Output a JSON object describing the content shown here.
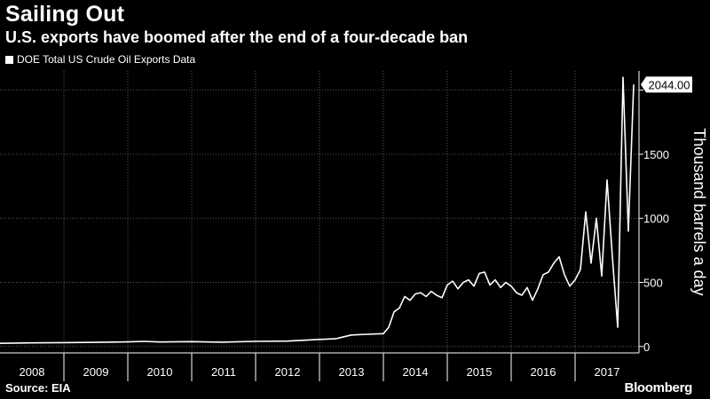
{
  "header": {
    "title": "Sailing Out",
    "subtitle": "U.S. exports have boomed after the end of a four-decade ban"
  },
  "footer": {
    "source": "Source: EIA",
    "brand": "Bloomberg"
  },
  "colors": {
    "background": "#000000",
    "line": "#ffffff",
    "grid": "#5a5a5a",
    "axis": "#ffffff"
  },
  "chart_data": {
    "type": "line",
    "title": "Sailing Out",
    "subtitle": "U.S. exports have boomed after the end of a four-decade ban",
    "ylabel": "Thousand barrels a day",
    "xlabel": "",
    "ylim": [
      -50,
      2150
    ],
    "xlim": [
      "2008-01",
      "2017-12"
    ],
    "y_ticks": [
      0,
      500,
      1000,
      1500,
      2000
    ],
    "y_tick_labels": [
      "0",
      "500",
      "1000",
      "1500",
      ""
    ],
    "x_tick_labels": [
      "2008",
      "2009",
      "2010",
      "2011",
      "2012",
      "2013",
      "2014",
      "2015",
      "2016",
      "2017"
    ],
    "grid": "vertical dotted at year boundaries, horizontal dotted at y ticks",
    "legend": "top-left",
    "last_value_label": "2044.00",
    "series": [
      {
        "name": "DOE Total US Crude Oil Exports Data",
        "points": [
          [
            "2008-01",
            25
          ],
          [
            "2008-07",
            28
          ],
          [
            "2009-01",
            30
          ],
          [
            "2009-07",
            32
          ],
          [
            "2010-01",
            36
          ],
          [
            "2010-04",
            40
          ],
          [
            "2010-07",
            35
          ],
          [
            "2011-01",
            38
          ],
          [
            "2011-07",
            34
          ],
          [
            "2012-01",
            40
          ],
          [
            "2012-07",
            42
          ],
          [
            "2013-01",
            55
          ],
          [
            "2013-04",
            60
          ],
          [
            "2013-07",
            90
          ],
          [
            "2013-10",
            95
          ],
          [
            "2014-01",
            100
          ],
          [
            "2014-02",
            150
          ],
          [
            "2014-03",
            270
          ],
          [
            "2014-04",
            300
          ],
          [
            "2014-05",
            390
          ],
          [
            "2014-06",
            360
          ],
          [
            "2014-07",
            410
          ],
          [
            "2014-08",
            420
          ],
          [
            "2014-09",
            390
          ],
          [
            "2014-10",
            430
          ],
          [
            "2014-11",
            400
          ],
          [
            "2014-12",
            380
          ],
          [
            "2015-01",
            480
          ],
          [
            "2015-02",
            510
          ],
          [
            "2015-03",
            450
          ],
          [
            "2015-04",
            500
          ],
          [
            "2015-05",
            520
          ],
          [
            "2015-06",
            470
          ],
          [
            "2015-07",
            570
          ],
          [
            "2015-08",
            580
          ],
          [
            "2015-09",
            480
          ],
          [
            "2015-10",
            520
          ],
          [
            "2015-11",
            460
          ],
          [
            "2015-12",
            500
          ],
          [
            "2016-01",
            470
          ],
          [
            "2016-02",
            420
          ],
          [
            "2016-03",
            400
          ],
          [
            "2016-04",
            460
          ],
          [
            "2016-05",
            360
          ],
          [
            "2016-06",
            450
          ],
          [
            "2016-07",
            560
          ],
          [
            "2016-08",
            580
          ],
          [
            "2016-09",
            650
          ],
          [
            "2016-10",
            700
          ],
          [
            "2016-11",
            560
          ],
          [
            "2016-12",
            470
          ],
          [
            "2017-01",
            520
          ],
          [
            "2017-02",
            600
          ],
          [
            "2017-03",
            1050
          ],
          [
            "2017-04",
            650
          ],
          [
            "2017-05",
            1000
          ],
          [
            "2017-06",
            550
          ],
          [
            "2017-07",
            1300
          ],
          [
            "2017-08",
            700
          ],
          [
            "2017-09",
            150
          ],
          [
            "2017-10",
            2100
          ],
          [
            "2017-11",
            900
          ],
          [
            "2017-12",
            2044
          ]
        ]
      }
    ]
  }
}
